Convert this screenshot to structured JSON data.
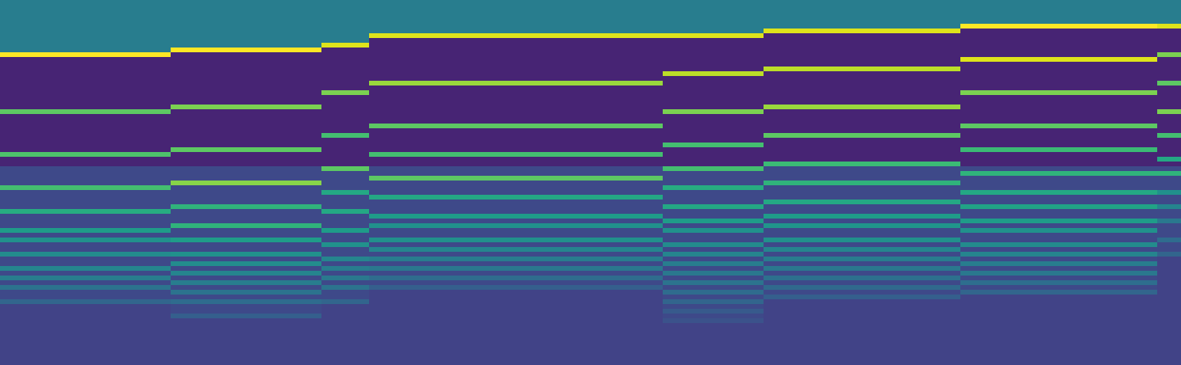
{
  "chart_data": {
    "type": "heatmap",
    "color": "Viridis",
    "grid": false,
    "tick_labels": false,
    "xlim": [
      0,
      1488
    ],
    "ylim": [
      461,
      0
    ],
    "zlim": [
      0,
      1
    ],
    "x": [
      0,
      215,
      405,
      465,
      835,
      962,
      1210,
      1458,
      1488
    ],
    "y": [
      0,
      6,
      12,
      18,
      24,
      30,
      36,
      42,
      48,
      54,
      60,
      66,
      72,
      78,
      84,
      90,
      96,
      102,
      108,
      114,
      120,
      126,
      132,
      138,
      144,
      150,
      156,
      162,
      168,
      174,
      180,
      186,
      192,
      198,
      204,
      210,
      216,
      222,
      228,
      234,
      240,
      246,
      252,
      258,
      264,
      270,
      276,
      282,
      288,
      294,
      300,
      306,
      312,
      318,
      324,
      330,
      336,
      342,
      348,
      354,
      360,
      366,
      372,
      378,
      384,
      390,
      396,
      402,
      408,
      414,
      420,
      426,
      432,
      438,
      444,
      450,
      456,
      462
    ],
    "z": [
      [
        0.42,
        0.42,
        0.42,
        0.42,
        0.42,
        0.42,
        0.42,
        0.42
      ],
      [
        0.42,
        0.42,
        0.42,
        0.42,
        0.42,
        0.42,
        0.42,
        0.42
      ],
      [
        0.42,
        0.42,
        0.42,
        0.42,
        0.42,
        0.42,
        0.42,
        0.42
      ],
      [
        0.42,
        0.42,
        0.42,
        0.42,
        0.42,
        0.42,
        0.42,
        0.42
      ],
      [
        0.42,
        0.42,
        0.42,
        0.42,
        0.42,
        0.42,
        0.42,
        0.42
      ],
      [
        0.42,
        0.42,
        0.42,
        0.42,
        0.42,
        0.42,
        1.0,
        0.95
      ],
      [
        0.42,
        0.42,
        0.42,
        0.42,
        0.42,
        0.95,
        0.1,
        0.1
      ],
      [
        0.42,
        0.42,
        0.42,
        0.95,
        0.95,
        0.1,
        0.1,
        0.1
      ],
      [
        0.42,
        0.42,
        0.42,
        0.1,
        0.1,
        0.1,
        0.1,
        0.1
      ],
      [
        0.42,
        0.42,
        0.95,
        0.1,
        0.1,
        0.1,
        0.1,
        0.1
      ],
      [
        0.42,
        1.0,
        0.1,
        0.1,
        0.1,
        0.1,
        0.1,
        0.1
      ],
      [
        1.0,
        0.1,
        0.1,
        0.1,
        0.1,
        0.1,
        0.1,
        0.8
      ],
      [
        0.1,
        0.1,
        0.1,
        0.1,
        0.1,
        0.1,
        0.95,
        0.1
      ],
      [
        0.1,
        0.1,
        0.1,
        0.1,
        0.1,
        0.1,
        0.1,
        0.1
      ],
      [
        0.1,
        0.1,
        0.1,
        0.1,
        0.1,
        0.9,
        0.1,
        0.1
      ],
      [
        0.1,
        0.1,
        0.1,
        0.1,
        0.9,
        0.1,
        0.1,
        0.1
      ],
      [
        0.1,
        0.1,
        0.1,
        0.1,
        0.1,
        0.1,
        0.1,
        0.1
      ],
      [
        0.1,
        0.1,
        0.1,
        0.85,
        0.1,
        0.1,
        0.1,
        0.75
      ],
      [
        0.1,
        0.1,
        0.1,
        0.1,
        0.1,
        0.1,
        0.1,
        0.1
      ],
      [
        0.1,
        0.1,
        0.8,
        0.1,
        0.1,
        0.1,
        0.8,
        0.1
      ],
      [
        0.1,
        0.1,
        0.1,
        0.1,
        0.1,
        0.1,
        0.1,
        0.1
      ],
      [
        0.1,
        0.1,
        0.1,
        0.1,
        0.1,
        0.1,
        0.1,
        0.1
      ],
      [
        0.1,
        0.8,
        0.1,
        0.1,
        0.1,
        0.85,
        0.1,
        0.1
      ],
      [
        0.75,
        0.1,
        0.1,
        0.1,
        0.8,
        0.1,
        0.1,
        0.8
      ],
      [
        0.1,
        0.1,
        0.1,
        0.1,
        0.1,
        0.1,
        0.1,
        0.1
      ],
      [
        0.1,
        0.1,
        0.1,
        0.1,
        0.1,
        0.1,
        0.1,
        0.1
      ],
      [
        0.1,
        0.1,
        0.1,
        0.75,
        0.1,
        0.1,
        0.75,
        0.1
      ],
      [
        0.1,
        0.1,
        0.1,
        0.1,
        0.1,
        0.1,
        0.1,
        0.1
      ],
      [
        0.1,
        0.1,
        0.7,
        0.1,
        0.1,
        0.75,
        0.1,
        0.7
      ],
      [
        0.1,
        0.1,
        0.1,
        0.1,
        0.1,
        0.1,
        0.1,
        0.1
      ],
      [
        0.1,
        0.1,
        0.1,
        0.1,
        0.7,
        0.1,
        0.1,
        0.1
      ],
      [
        0.1,
        0.75,
        0.1,
        0.1,
        0.1,
        0.1,
        0.68,
        0.1
      ],
      [
        0.72,
        0.1,
        0.1,
        0.7,
        0.1,
        0.1,
        0.1,
        0.1
      ],
      [
        0.1,
        0.1,
        0.1,
        0.1,
        0.1,
        0.1,
        0.1,
        0.6
      ],
      [
        0.1,
        0.1,
        0.1,
        0.1,
        0.1,
        0.68,
        0.1,
        0.1
      ],
      [
        0.22,
        0.22,
        0.75,
        0.22,
        0.7,
        0.22,
        0.22,
        0.22
      ],
      [
        0.22,
        0.22,
        0.22,
        0.22,
        0.22,
        0.22,
        0.65,
        0.65
      ],
      [
        0.22,
        0.22,
        0.22,
        0.75,
        0.22,
        0.22,
        0.22,
        0.22
      ],
      [
        0.22,
        0.82,
        0.22,
        0.22,
        0.22,
        0.65,
        0.22,
        0.22
      ],
      [
        0.7,
        0.22,
        0.22,
        0.22,
        0.62,
        0.22,
        0.22,
        0.22
      ],
      [
        0.22,
        0.22,
        0.6,
        0.22,
        0.22,
        0.22,
        0.6,
        0.5
      ],
      [
        0.22,
        0.22,
        0.22,
        0.6,
        0.22,
        0.22,
        0.22,
        0.22
      ],
      [
        0.22,
        0.22,
        0.22,
        0.22,
        0.22,
        0.6,
        0.22,
        0.22
      ],
      [
        0.22,
        0.65,
        0.22,
        0.22,
        0.6,
        0.22,
        0.58,
        0.45
      ],
      [
        0.62,
        0.22,
        0.6,
        0.22,
        0.22,
        0.22,
        0.22,
        0.22
      ],
      [
        0.22,
        0.22,
        0.22,
        0.55,
        0.22,
        0.55,
        0.22,
        0.22
      ],
      [
        0.22,
        0.22,
        0.22,
        0.22,
        0.55,
        0.22,
        0.55,
        0.4
      ],
      [
        0.22,
        0.65,
        0.22,
        0.5,
        0.22,
        0.52,
        0.22,
        0.22
      ],
      [
        0.55,
        0.22,
        0.55,
        0.22,
        0.5,
        0.22,
        0.5,
        0.22
      ],
      [
        0.22,
        0.22,
        0.22,
        0.22,
        0.22,
        0.22,
        0.22,
        0.22
      ],
      [
        0.5,
        0.55,
        0.22,
        0.5,
        0.22,
        0.5,
        0.22,
        0.35
      ],
      [
        0.22,
        0.22,
        0.5,
        0.22,
        0.48,
        0.22,
        0.48,
        0.22
      ],
      [
        0.22,
        0.22,
        0.22,
        0.45,
        0.22,
        0.45,
        0.22,
        0.22
      ],
      [
        0.48,
        0.5,
        0.22,
        0.22,
        0.45,
        0.22,
        0.45,
        0.32
      ],
      [
        0.22,
        0.22,
        0.45,
        0.42,
        0.22,
        0.42,
        0.22,
        0.2
      ],
      [
        0.22,
        0.48,
        0.22,
        0.22,
        0.42,
        0.22,
        0.42,
        0.2
      ],
      [
        0.45,
        0.22,
        0.42,
        0.4,
        0.22,
        0.4,
        0.22,
        0.2
      ],
      [
        0.22,
        0.45,
        0.22,
        0.22,
        0.4,
        0.22,
        0.4,
        0.2
      ],
      [
        0.42,
        0.22,
        0.4,
        0.35,
        0.22,
        0.37,
        0.22,
        0.2
      ],
      [
        0.22,
        0.42,
        0.22,
        0.22,
        0.38,
        0.22,
        0.36,
        0.2
      ],
      [
        0.38,
        0.22,
        0.38,
        0.3,
        0.22,
        0.34,
        0.22,
        0.2
      ],
      [
        0.22,
        0.38,
        0.22,
        0.2,
        0.35,
        0.22,
        0.32,
        0.2
      ],
      [
        0.22,
        0.22,
        0.22,
        0.2,
        0.22,
        0.3,
        0.2,
        0.2
      ],
      [
        0.32,
        0.35,
        0.32,
        0.2,
        0.32,
        0.2,
        0.2,
        0.2
      ],
      [
        0.2,
        0.22,
        0.2,
        0.2,
        0.22,
        0.2,
        0.2,
        0.2
      ],
      [
        0.2,
        0.22,
        0.2,
        0.2,
        0.28,
        0.2,
        0.2,
        0.2
      ],
      [
        0.2,
        0.3,
        0.2,
        0.2,
        0.22,
        0.2,
        0.2,
        0.2
      ],
      [
        0.2,
        0.2,
        0.2,
        0.2,
        0.25,
        0.2,
        0.2,
        0.2
      ],
      [
        0.2,
        0.2,
        0.2,
        0.2,
        0.2,
        0.2,
        0.2,
        0.2
      ],
      [
        0.2,
        0.2,
        0.2,
        0.2,
        0.2,
        0.2,
        0.2,
        0.2
      ],
      [
        0.2,
        0.2,
        0.2,
        0.2,
        0.2,
        0.2,
        0.2,
        0.2
      ],
      [
        0.2,
        0.2,
        0.2,
        0.2,
        0.2,
        0.2,
        0.2,
        0.2
      ],
      [
        0.2,
        0.2,
        0.2,
        0.2,
        0.2,
        0.2,
        0.2,
        0.2
      ],
      [
        0.2,
        0.2,
        0.2,
        0.2,
        0.2,
        0.2,
        0.2,
        0.2
      ],
      [
        0.2,
        0.2,
        0.2,
        0.2,
        0.2,
        0.2,
        0.2,
        0.2
      ],
      [
        0.2,
        0.2,
        0.2,
        0.2,
        0.2,
        0.2,
        0.2,
        0.2
      ],
      [
        0.2,
        0.2,
        0.2,
        0.2,
        0.2,
        0.2,
        0.2,
        0.2
      ]
    ]
  }
}
